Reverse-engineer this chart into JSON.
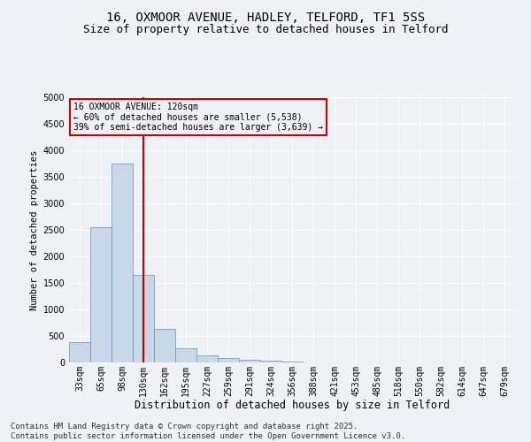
{
  "title": "16, OXMOOR AVENUE, HADLEY, TELFORD, TF1 5SS",
  "subtitle": "Size of property relative to detached houses in Telford",
  "xlabel": "Distribution of detached houses by size in Telford",
  "ylabel": "Number of detached properties",
  "categories": [
    "33sqm",
    "65sqm",
    "98sqm",
    "130sqm",
    "162sqm",
    "195sqm",
    "227sqm",
    "259sqm",
    "291sqm",
    "324sqm",
    "356sqm",
    "388sqm",
    "421sqm",
    "453sqm",
    "485sqm",
    "518sqm",
    "550sqm",
    "582sqm",
    "614sqm",
    "647sqm",
    "679sqm"
  ],
  "values": [
    380,
    2550,
    3750,
    1650,
    630,
    270,
    130,
    80,
    50,
    30,
    10,
    5,
    3,
    2,
    1,
    1,
    0,
    0,
    0,
    0,
    0
  ],
  "bar_color": "#c8d8e8",
  "bar_edgecolor": "#7090b0",
  "red_line_index": 3,
  "red_line_color": "#cc0000",
  "ylim": [
    0,
    5000
  ],
  "annotation_line1": "16 OXMOOR AVENUE: 120sqm",
  "annotation_line2": "← 60% of detached houses are smaller (5,538)",
  "annotation_line3": "39% of semi-detached houses are larger (3,639) →",
  "annotation_box_edgecolor": "#cc0000",
  "footer_line1": "Contains HM Land Registry data © Crown copyright and database right 2025.",
  "footer_line2": "Contains public sector information licensed under the Open Government Licence v3.0.",
  "background_color": "#eef2f6",
  "grid_color": "#ffffff",
  "title_fontsize": 10,
  "subtitle_fontsize": 9,
  "xlabel_fontsize": 8.5,
  "ylabel_fontsize": 7.5,
  "tick_fontsize": 7,
  "footer_fontsize": 6.5,
  "annotation_fontsize": 7
}
